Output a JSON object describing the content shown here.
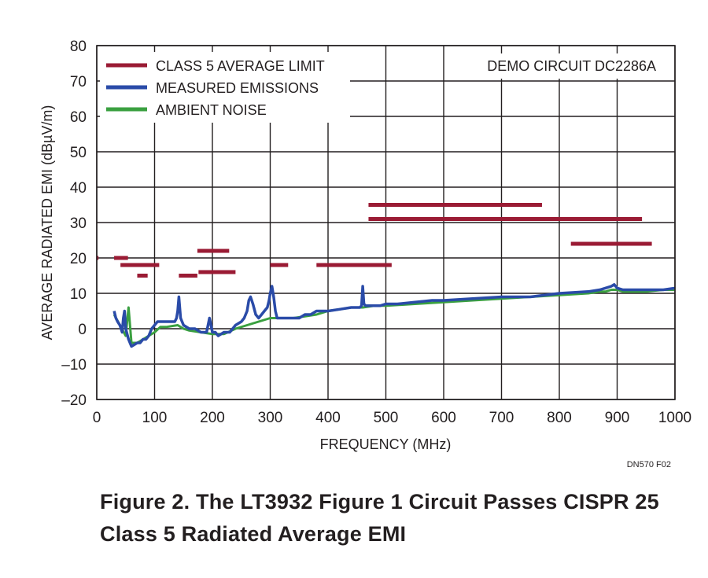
{
  "chart_data": {
    "type": "line",
    "title": "",
    "xlabel": "FREQUENCY (MHz)",
    "ylabel": "AVERAGE RADIATED EMI  (dBµV/m)",
    "xlim": [
      0,
      1000
    ],
    "ylim": [
      -20,
      80
    ],
    "xticks": [
      0,
      100,
      200,
      300,
      400,
      500,
      600,
      700,
      800,
      900,
      1000
    ],
    "yticks": [
      -20,
      -10,
      0,
      10,
      20,
      30,
      40,
      50,
      60,
      70,
      80
    ],
    "xtick_labels": [
      "0",
      "100",
      "200",
      "300",
      "400",
      "500",
      "600",
      "700",
      "800",
      "900",
      "1000"
    ],
    "ytick_labels": [
      "–20",
      "–10",
      "0",
      "10",
      "20",
      "30",
      "40",
      "50",
      "60",
      "70",
      "80"
    ],
    "grid": true,
    "legend_position": "top-left",
    "annotation": "DEMO CIRCUIT DC2286A",
    "colors": {
      "limit": "#9a1b34",
      "measured": "#2a4ba8",
      "ambient": "#3aa040",
      "grid": "#231f20"
    },
    "series": [
      {
        "name": "CLASS 5 AVERAGE LIMIT",
        "kind": "segments",
        "segments": [
          [
            0,
            3,
            20
          ],
          [
            30,
            54,
            20
          ],
          [
            41,
            108,
            18
          ],
          [
            70,
            88,
            15
          ],
          [
            142,
            174,
            15
          ],
          [
            176,
            240,
            16
          ],
          [
            174,
            229,
            22
          ],
          [
            300,
            331,
            18
          ],
          [
            380,
            510,
            18
          ],
          [
            470,
            770,
            35
          ],
          [
            470,
            943,
            31
          ],
          [
            820,
            960,
            24
          ]
        ]
      },
      {
        "name": "MEASURED EMISSIONS",
        "kind": "line",
        "x": [
          30,
          33,
          36,
          40,
          44,
          46,
          48,
          50,
          55,
          60,
          65,
          70,
          75,
          80,
          85,
          90,
          95,
          100,
          105,
          110,
          115,
          120,
          125,
          130,
          135,
          138,
          140,
          142,
          145,
          150,
          160,
          170,
          180,
          190,
          195,
          200,
          205,
          210,
          220,
          230,
          240,
          250,
          255,
          260,
          263,
          266,
          270,
          275,
          280,
          285,
          290,
          295,
          298,
          300,
          303,
          306,
          309,
          312,
          315,
          320,
          330,
          340,
          350,
          360,
          370,
          380,
          400,
          420,
          440,
          450,
          455,
          458,
          460,
          462,
          465,
          470,
          490,
          500,
          520,
          550,
          580,
          600,
          650,
          700,
          750,
          800,
          850,
          870,
          880,
          890,
          895,
          900,
          910,
          920,
          950,
          980,
          1000
        ],
        "y": [
          5,
          3,
          2,
          1,
          -1,
          3,
          5,
          0,
          -3,
          -5,
          -4.5,
          -4,
          -4,
          -3,
          -3,
          -2,
          0,
          1,
          2,
          2,
          2,
          2,
          2,
          2,
          2,
          3,
          5,
          9,
          3,
          1,
          0,
          0,
          -1,
          -1,
          3,
          -1,
          -1,
          -2,
          -1,
          -1,
          1,
          2,
          3,
          5,
          8,
          9,
          7,
          4,
          3,
          4,
          5,
          6,
          8,
          10,
          12,
          9,
          5,
          3,
          3,
          3,
          3,
          3,
          3,
          4,
          4,
          5,
          5,
          5.5,
          6,
          6,
          6,
          6.5,
          12,
          7,
          6.5,
          6.5,
          6.5,
          7,
          7,
          7.5,
          8,
          8,
          8.5,
          9,
          9,
          10,
          10.5,
          11,
          11.5,
          12,
          12.5,
          11.5,
          11,
          11,
          11,
          11,
          11.5
        ]
      },
      {
        "name": "AMBIENT NOISE",
        "kind": "line",
        "x": [
          30,
          40,
          50,
          55,
          60,
          70,
          80,
          90,
          100,
          110,
          120,
          140,
          150,
          160,
          180,
          200,
          220,
          240,
          260,
          280,
          300,
          320,
          340,
          360,
          380,
          400,
          420,
          440,
          460,
          480,
          500,
          550,
          600,
          650,
          700,
          750,
          800,
          850,
          870,
          880,
          890,
          900,
          910,
          920,
          950,
          980,
          1000
        ],
        "y": [
          4,
          1,
          -2,
          6,
          -4,
          -4,
          -3,
          -2,
          -1,
          0.5,
          0.5,
          1,
          0,
          -0.5,
          -1,
          -1.5,
          -1.5,
          0,
          1,
          2,
          3,
          3,
          3,
          3.5,
          4,
          5,
          5.5,
          6,
          6,
          6.5,
          6.5,
          7,
          7.5,
          8,
          8.5,
          9,
          9.5,
          10,
          10.5,
          10.5,
          11,
          11,
          10.5,
          10.5,
          10.5,
          11,
          11
        ]
      }
    ]
  },
  "fig_id": "DN570 F02",
  "caption": {
    "line1": "Figure 2. The LT3932 Figure 1 Circuit Passes CISPR 25",
    "line2": "Class 5 Radiated Average EMI"
  }
}
